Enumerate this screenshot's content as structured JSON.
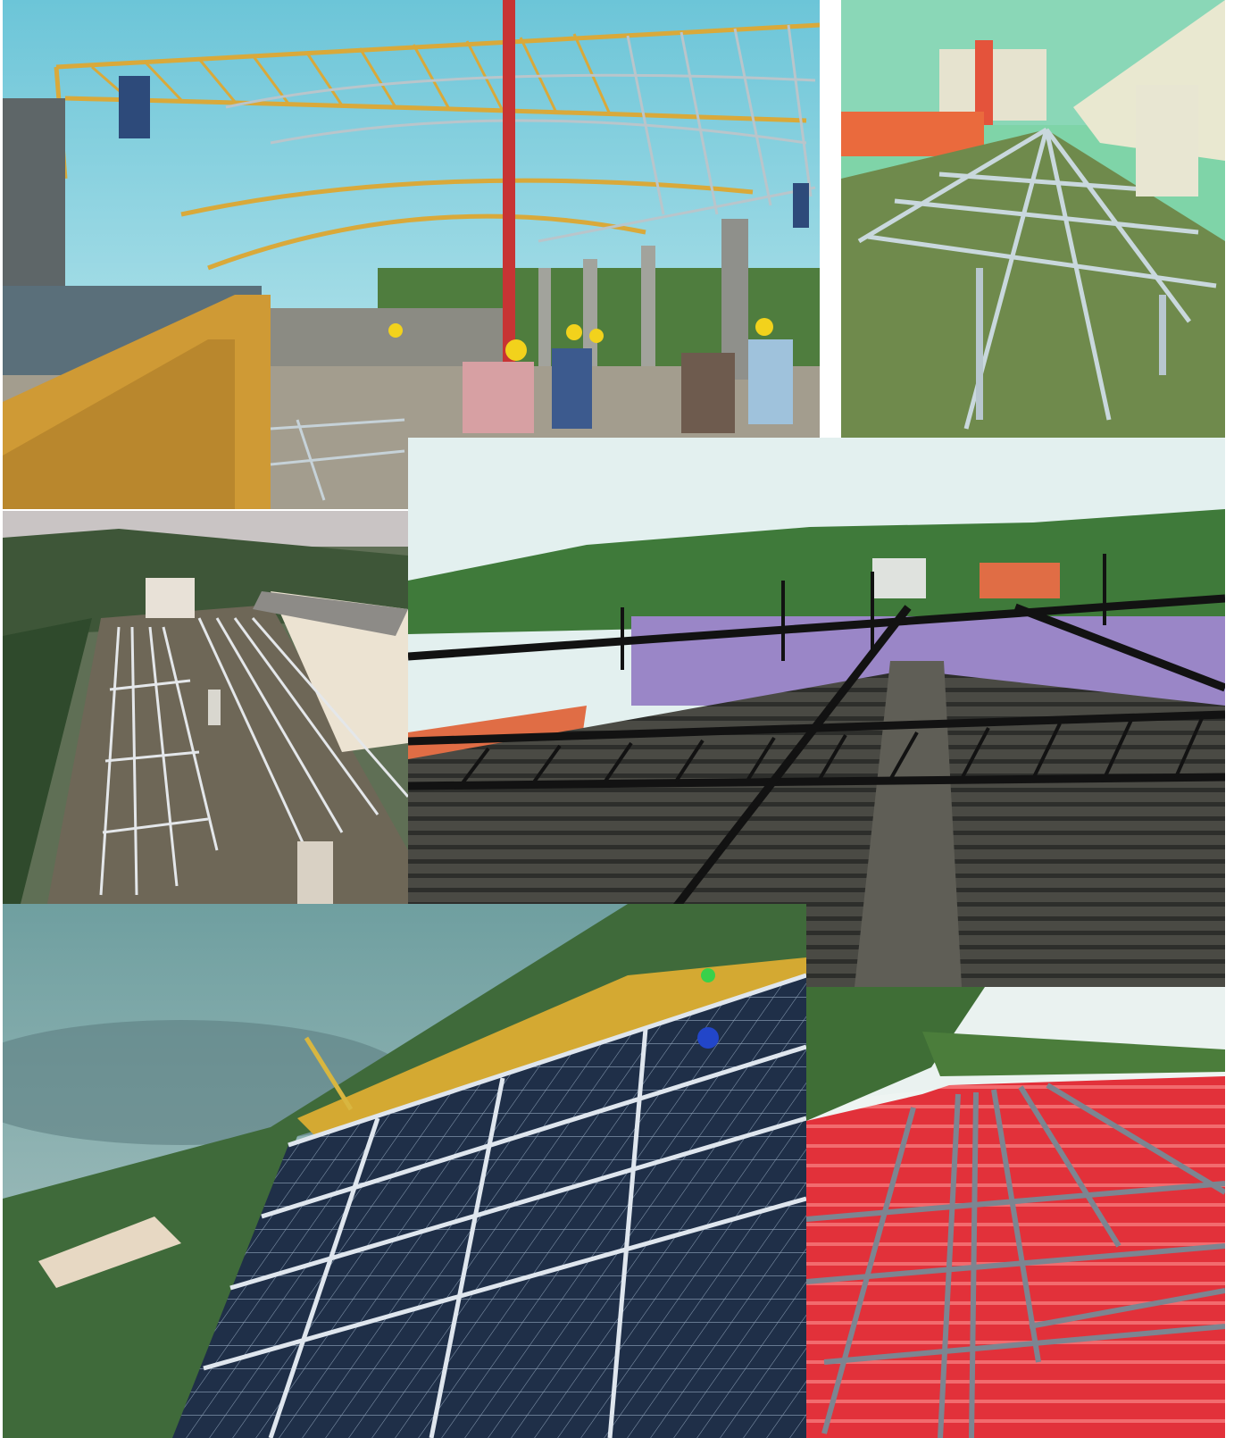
{
  "collage": {
    "photos": [
      {
        "subject": "steel-arch-truss-roof-construction"
      },
      {
        "subject": "galvanized-solar-mounting-structure-on-roof"
      },
      {
        "subject": "solar-rail-frames-on-flat-terrace"
      },
      {
        "subject": "black-steel-truss-over-asbestos-roof"
      },
      {
        "subject": "installed-solar-panel-array"
      },
      {
        "subject": "steel-frame-on-red-metal-roof"
      }
    ]
  },
  "colors": {
    "sky": "#7fc7d9",
    "truss_yellow": "#d6a23a",
    "galvanized": "#b8c7cf",
    "roof_red": "#e2313a",
    "panel_blue": "#1d2c44",
    "foliage": "#3f6f3a"
  }
}
